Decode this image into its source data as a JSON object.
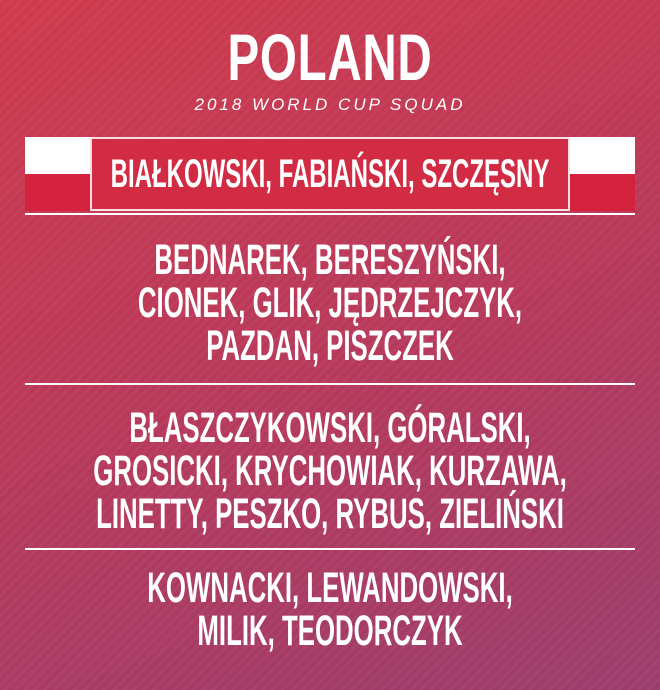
{
  "header": {
    "title": "POLAND",
    "subtitle": "2018 WORLD CUP SQUAD"
  },
  "groups": [
    [
      "BIAŁKOWSKI, FABIAŃSKI, SZCZĘSNY"
    ],
    [
      "BEDNAREK, BERESZYŃSKI,",
      "CIONEK, GLIK, JĘDRZEJCZYK,",
      "PAZDAN, PISZCZEK"
    ],
    [
      "BŁASZCZYKOWSKI, GÓRALSKI,",
      "GROSICKI, KRYCHOWIAK, KURZAWA,",
      "LINETTY, PESZKO, RYBUS, ZIELIŃSKI"
    ],
    [
      "KOWNACKI, LEWANDOWSKI,",
      "MILIK, TEODORCZYK"
    ]
  ]
}
